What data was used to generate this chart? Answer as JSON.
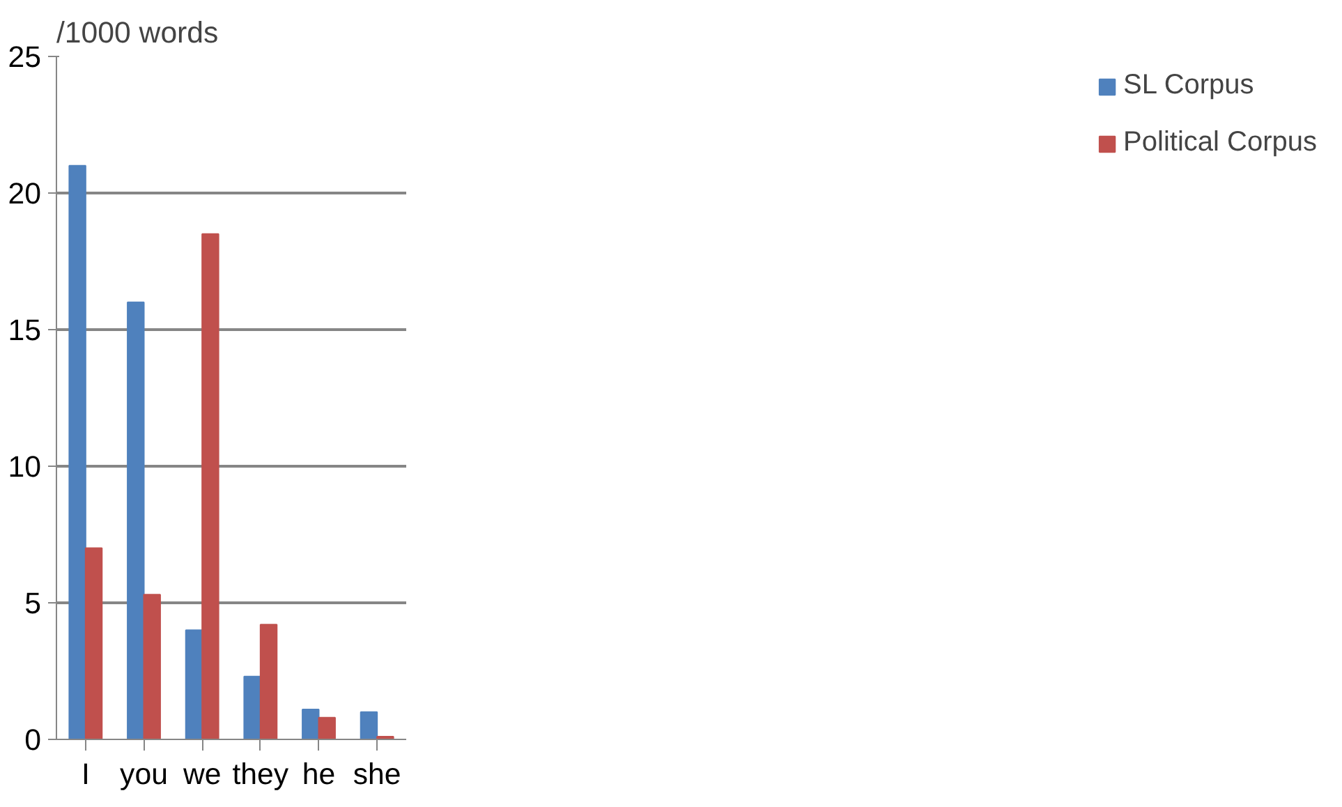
{
  "chart_data": {
    "type": "bar",
    "ylabel": "/1000 words",
    "categories": [
      "I",
      "you",
      "we",
      "they",
      "he",
      "she"
    ],
    "series": [
      {
        "name": "SL Corpus",
        "color": "#4f81bd",
        "values": [
          21,
          16,
          4,
          2.3,
          1.1,
          1.0
        ]
      },
      {
        "name": "Political Corpus",
        "color": "#c0504d",
        "values": [
          7,
          5.3,
          18.5,
          4.2,
          0.8,
          0.1
        ]
      }
    ],
    "ylim": [
      0,
      25
    ],
    "yticks": [
      0,
      5,
      10,
      15,
      20,
      25
    ],
    "grid": "y",
    "legend": "right"
  }
}
